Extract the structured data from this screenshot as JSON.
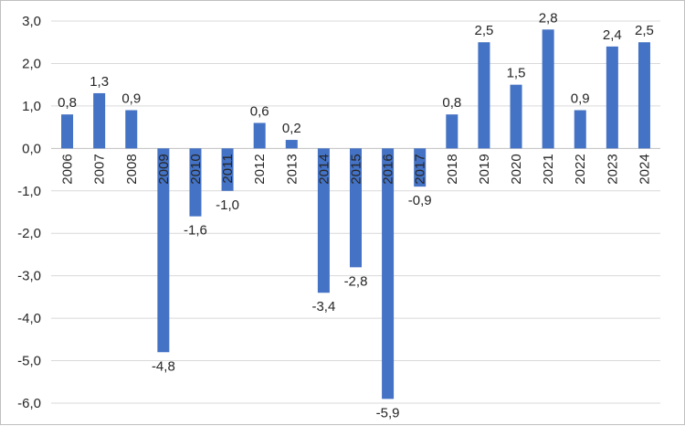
{
  "chart_data": {
    "type": "bar",
    "title": "",
    "xlabel": "",
    "ylabel": "",
    "categories": [
      "2006",
      "2007",
      "2008",
      "2009",
      "2010",
      "2011",
      "2012",
      "2013",
      "2014",
      "2015",
      "2016",
      "2017",
      "2018",
      "2019",
      "2020",
      "2021",
      "2022",
      "2023",
      "2024"
    ],
    "values": [
      0.8,
      1.3,
      0.9,
      -4.8,
      -1.6,
      -1.0,
      0.6,
      0.2,
      -3.4,
      -2.8,
      -5.9,
      -0.9,
      0.8,
      2.5,
      1.5,
      2.8,
      0.9,
      2.4,
      2.5
    ],
    "data_labels": [
      "0,8",
      "1,3",
      "0,9",
      "-4,8",
      "-1,6",
      "-1,0",
      "0,6",
      "0,2",
      "-3,4",
      "-2,8",
      "-5,9",
      "-0,9",
      "0,8",
      "2,5",
      "1,5",
      "2,8",
      "0,9",
      "2,4",
      "2,5"
    ],
    "ylim": [
      -6.0,
      3.0
    ],
    "yticks": [
      3.0,
      2.0,
      1.0,
      0.0,
      -1.0,
      -2.0,
      -3.0,
      -4.0,
      -5.0,
      -6.0
    ],
    "ytick_labels": [
      "3,0",
      "2,0",
      "1,0",
      "0,0",
      "-1,0",
      "-2,0",
      "-3,0",
      "-4,0",
      "-5,0",
      "-6,0"
    ],
    "grid": true,
    "legend": "none",
    "bar_color": "#4472c4"
  }
}
